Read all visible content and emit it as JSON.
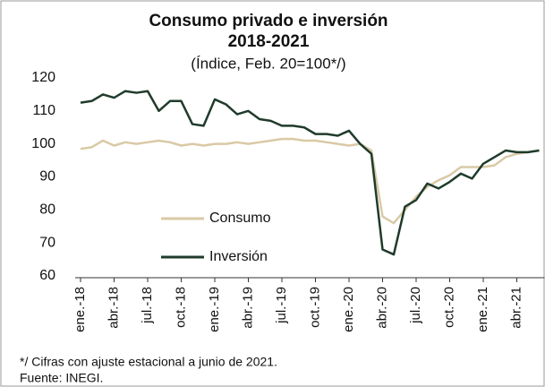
{
  "chart_data": {
    "type": "line",
    "title": "Consumo privado e inversión",
    "subtitle": "2018-2021",
    "y_label": "(Índice, Feb. 20=100*/)",
    "categories": [
      "ene.-18",
      null,
      null,
      "abr.-18",
      null,
      null,
      "jul.-18",
      null,
      null,
      "oct.-18",
      null,
      null,
      "ene.-19",
      null,
      null,
      "abr.-19",
      null,
      null,
      "jul.-19",
      null,
      null,
      "oct.-19",
      null,
      null,
      "ene.-20",
      null,
      null,
      "abr.-20",
      null,
      null,
      "jul.-20",
      null,
      null,
      "oct.-20",
      null,
      null,
      "ene.-21",
      null,
      null,
      "abr.-21",
      null,
      null
    ],
    "series": [
      {
        "name": "Consumo",
        "color": "#d9c9a6",
        "values": [
          98.5,
          99,
          101,
          99.5,
          100.5,
          100,
          100.5,
          101,
          100.5,
          99.5,
          100,
          99.5,
          100,
          100,
          100.5,
          100,
          100.5,
          101,
          101.5,
          101.5,
          101,
          101,
          100.5,
          100,
          99.5,
          100,
          98,
          78,
          76,
          80,
          84,
          87,
          89,
          90.5,
          93,
          93,
          93,
          93.5,
          96,
          97,
          97.5,
          98
        ]
      },
      {
        "name": "Inversión",
        "color": "#1f3b2b",
        "values": [
          112.5,
          113,
          115,
          114,
          116,
          115.5,
          116,
          110,
          113,
          113,
          106,
          105.5,
          113.5,
          112,
          109,
          110,
          107.5,
          107,
          105.5,
          105.5,
          105,
          103,
          103,
          102.5,
          104,
          100,
          97,
          68,
          66.5,
          81,
          83,
          88,
          86.5,
          88.5,
          91,
          89.5,
          94,
          96,
          98,
          97.5,
          97.5,
          98
        ]
      }
    ],
    "ylim": [
      60,
      120
    ],
    "yticks": [
      60,
      70,
      80,
      90,
      100,
      110,
      120
    ],
    "grid": false,
    "notes": [
      "*/ Cifras con ajuste estacional a junio de 2021.",
      "Fuente: INEGI."
    ]
  }
}
